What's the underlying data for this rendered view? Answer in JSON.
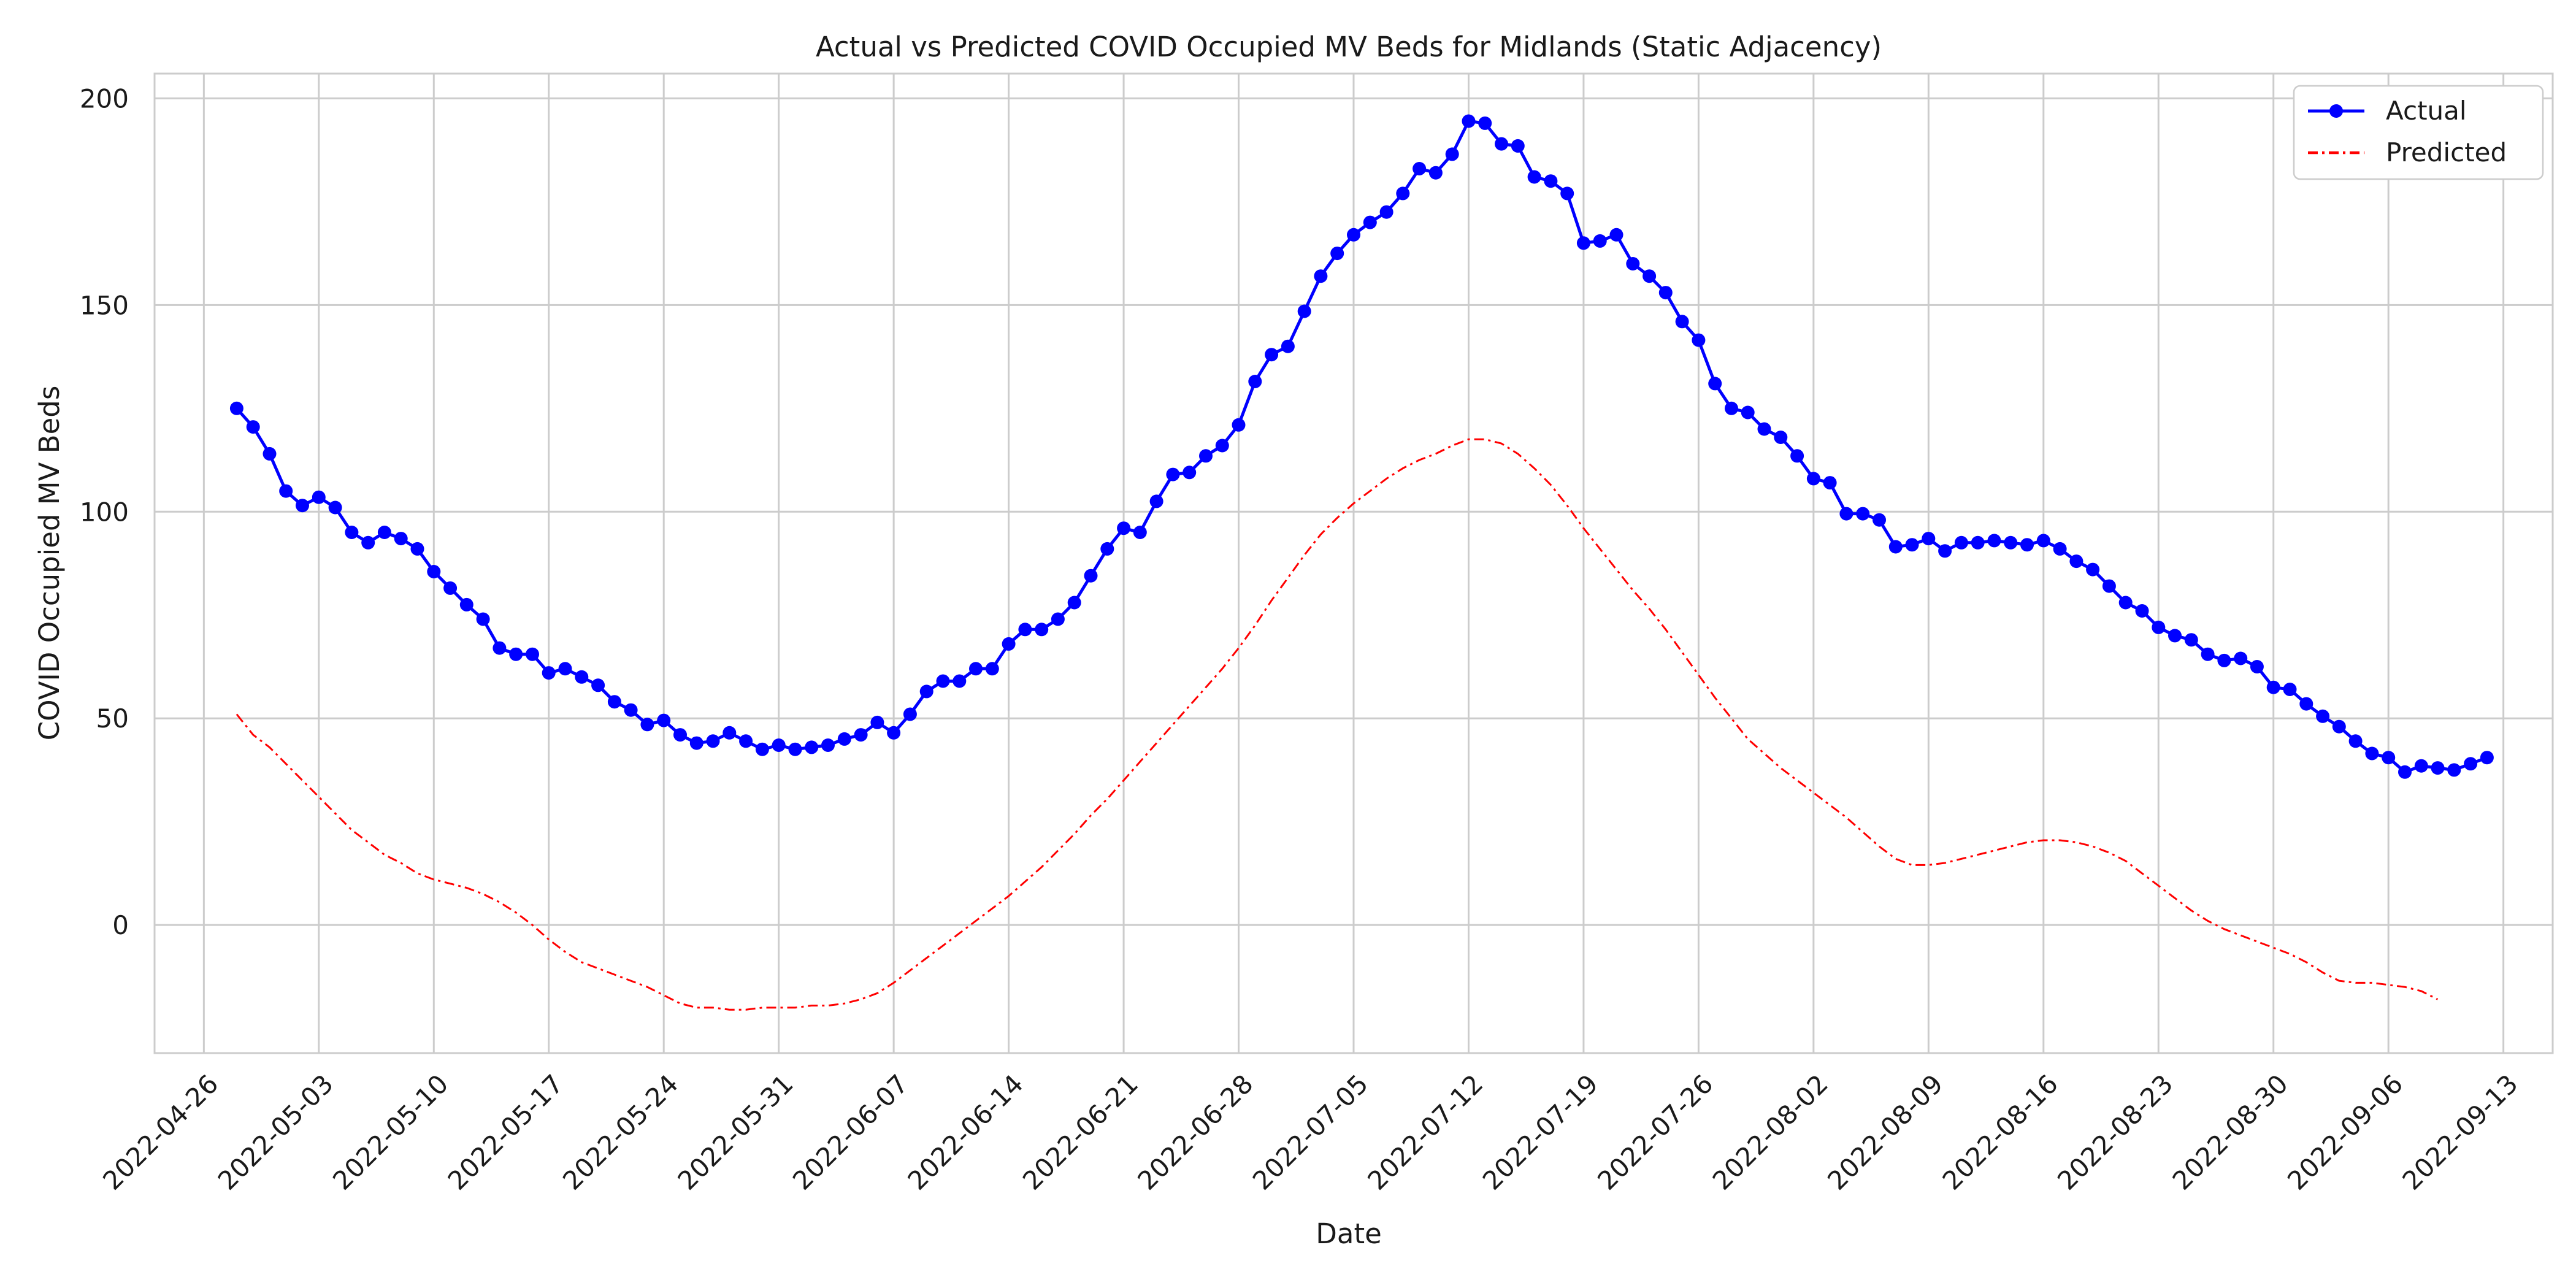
{
  "chart_data": {
    "type": "line",
    "title": "Actual vs Predicted COVID Occupied MV Beds for Midlands (Static Adjacency)",
    "xlabel": "Date",
    "ylabel": "COVID Occupied MV Beds",
    "x_start": "2022-04-28",
    "x_end": "2022-09-13",
    "xlim": [
      "2022-04-23",
      "2022-09-16"
    ],
    "ylim": [
      -31,
      206
    ],
    "x_ticks": [
      "2022-04-26",
      "2022-05-03",
      "2022-05-10",
      "2022-05-17",
      "2022-05-24",
      "2022-05-31",
      "2022-06-07",
      "2022-06-14",
      "2022-06-21",
      "2022-06-28",
      "2022-07-05",
      "2022-07-12",
      "2022-07-19",
      "2022-07-26",
      "2022-08-02",
      "2022-08-09",
      "2022-08-16",
      "2022-08-23",
      "2022-08-30",
      "2022-09-06",
      "2022-09-13"
    ],
    "y_ticks": [
      0,
      50,
      100,
      150,
      200
    ],
    "grid": true,
    "legend_position": "top-right",
    "series": [
      {
        "name": "Actual",
        "color": "#0000ff",
        "line_style": "solid",
        "marker": "circle",
        "values": [
          125,
          120.5,
          114,
          105,
          101.5,
          103.5,
          101,
          95,
          92.5,
          95,
          93.5,
          91,
          85.5,
          81.5,
          77.5,
          74,
          67,
          65.5,
          65.5,
          61,
          62,
          60,
          58,
          54,
          52,
          48.5,
          49.5,
          46,
          44,
          44.5,
          46.5,
          44.5,
          42.5,
          43.5,
          42.5,
          43,
          43.5,
          45,
          46,
          49,
          46.5,
          51,
          56.5,
          59,
          59,
          62,
          62,
          68,
          71.5,
          71.5,
          74,
          78,
          84.5,
          91,
          96,
          95,
          102.5,
          109,
          109.5,
          113.5,
          116,
          121,
          131.5,
          138,
          140,
          148.5,
          157,
          162.5,
          167,
          170,
          172.5,
          177,
          183,
          182,
          186.5,
          194.5,
          194,
          189,
          188.5,
          181,
          180,
          177,
          165,
          165.5,
          167,
          160,
          157,
          153,
          146,
          141.5,
          131,
          125,
          124,
          120,
          118,
          113.5,
          108,
          107,
          99.5,
          99.5,
          98,
          91.5,
          92,
          93.5,
          90.5,
          92.5,
          92.5,
          93,
          92.5,
          92,
          93,
          91,
          88,
          86,
          82,
          78,
          76,
          72,
          70,
          69,
          65.5,
          64,
          64.5,
          62.5,
          57.5,
          57,
          53.5,
          50.5,
          48,
          44.5,
          41.5,
          40.5,
          37,
          38.5,
          38,
          37.5,
          39,
          40.5
        ]
      },
      {
        "name": "Predicted",
        "color": "#ff0000",
        "line_style": "dashdot",
        "values": [
          51,
          46,
          43,
          39,
          35,
          31,
          27,
          23,
          20,
          17,
          15,
          12.5,
          11,
          10,
          9,
          7.5,
          5.5,
          3,
          0,
          -3.5,
          -6.5,
          -9,
          -10.5,
          -12,
          -13.5,
          -15,
          -17,
          -19,
          -20,
          -20,
          -20.5,
          -20.5,
          -20,
          -20,
          -20,
          -19.5,
          -19.5,
          -19,
          -18,
          -16.5,
          -14,
          -11,
          -8,
          -5,
          -2,
          1,
          4,
          7,
          10.5,
          14,
          18,
          22,
          26.5,
          30.5,
          35,
          39.5,
          44,
          48.5,
          53,
          57.5,
          62,
          67,
          72.5,
          78.5,
          84,
          89.5,
          94.5,
          98.5,
          102,
          105,
          108,
          110.5,
          112.5,
          114,
          116,
          117.5,
          117.5,
          116.5,
          114,
          110.5,
          106.5,
          101.5,
          96,
          91,
          86,
          81,
          76.5,
          71.5,
          66,
          60.5,
          55,
          50,
          45,
          41.5,
          38,
          35,
          32,
          29,
          26,
          22.5,
          19,
          16,
          14.5,
          14.5,
          15,
          16,
          17,
          18,
          19,
          20,
          20.5,
          20.5,
          20,
          19,
          17.5,
          15.5,
          12.5,
          9.5,
          6.5,
          3.5,
          1,
          -1,
          -2.5,
          -4,
          -5.5,
          -7,
          -9,
          -11.5,
          -13.5,
          -14,
          -14,
          -14.5,
          -15,
          -16,
          -18
        ]
      }
    ]
  }
}
